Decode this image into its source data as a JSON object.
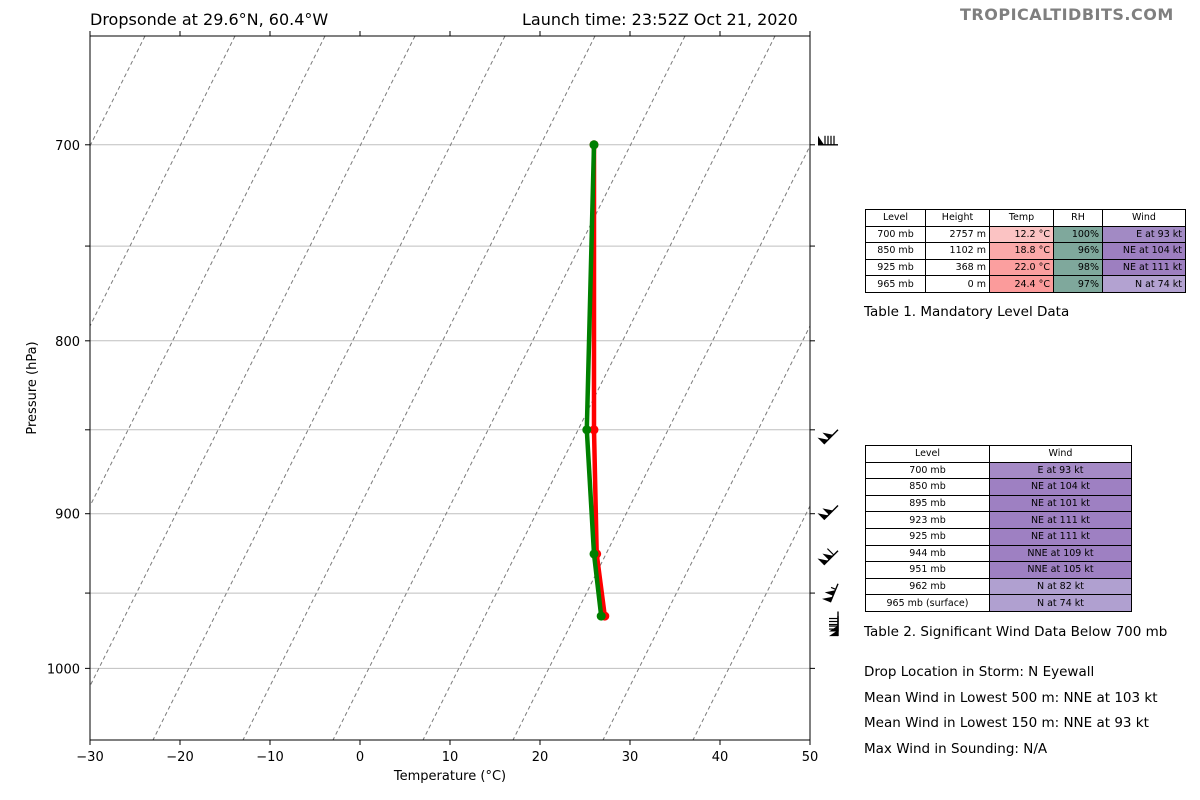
{
  "header": {
    "title_left": "Dropsonde at 29.6°N, 60.4°W",
    "title_right": "Launch time: 23:52Z Oct 21, 2020",
    "watermark": "TROPICALTIDBITS.COM"
  },
  "chart_data": {
    "type": "line",
    "xlabel": "Temperature (°C)",
    "ylabel": "Pressure (hPa)",
    "xlim": [
      -30,
      50
    ],
    "ylim": [
      1050,
      650
    ],
    "yscale": "log",
    "x_ticks": [
      "−30",
      "−20",
      "−10",
      "0",
      "10",
      "20",
      "30",
      "40",
      "50"
    ],
    "y_ticks": [
      "700",
      "800",
      "900",
      "1000"
    ],
    "grid_pressures": [
      700,
      750,
      800,
      850,
      900,
      950,
      1000
    ],
    "skew": "dashed diagonal isotherms",
    "series": [
      {
        "color": "#ff0000",
        "points": [
          [
            26.0,
            700
          ],
          [
            26.0,
            850
          ],
          [
            26.3,
            925
          ],
          [
            27.2,
            965
          ]
        ]
      },
      {
        "color": "#008000",
        "points": [
          [
            26.0,
            700
          ],
          [
            25.2,
            850
          ],
          [
            26.0,
            925
          ],
          [
            26.8,
            965
          ]
        ]
      }
    ],
    "wind_barbs": [
      {
        "p": 700,
        "dir": "E",
        "kt": 93
      },
      {
        "p": 850,
        "dir": "NE",
        "kt": 104
      },
      {
        "p": 895,
        "dir": "NE",
        "kt": 101
      },
      {
        "p": 923,
        "dir": "NE",
        "kt": 111
      },
      {
        "p": 944,
        "dir": "NNE",
        "kt": 109
      },
      {
        "p": 962,
        "dir": "N",
        "kt": 82
      },
      {
        "p": 965,
        "dir": "N",
        "kt": 74
      }
    ]
  },
  "table1": {
    "headers": [
      "Level",
      "Height",
      "Temp",
      "RH",
      "Wind"
    ],
    "rows": [
      {
        "level": "700 mb",
        "height": "2757 m",
        "temp": "12.2 °C",
        "rh": "100%",
        "wind": "E at 93 kt",
        "temp_color": "#fbc3c3",
        "wind_color": "#a28ac4"
      },
      {
        "level": "850 mb",
        "height": "1102 m",
        "temp": "18.8 °C",
        "rh": "96%",
        "wind": "NE at 104 kt",
        "temp_color": "#fba9a9",
        "wind_color": "#9d7fc0"
      },
      {
        "level": "925 mb",
        "height": "368 m",
        "temp": "22.0 °C",
        "rh": "98%",
        "wind": "NE at 111 kt",
        "temp_color": "#fb9f9f",
        "wind_color": "#9d7fc0"
      },
      {
        "level": "965 mb",
        "height": "0 m",
        "temp": "24.4 °C",
        "rh": "97%",
        "wind": "N at 74 kt",
        "temp_color": "#fb9b9b",
        "wind_color": "#b3a2d1"
      }
    ],
    "rh_color": "#7fa89c",
    "caption": "Table 1. Mandatory Level Data"
  },
  "table2": {
    "headers": [
      "Level",
      "Wind"
    ],
    "rows": [
      {
        "level": "700 mb",
        "wind": "E at 93 kt",
        "color": "#a58ac6"
      },
      {
        "level": "850 mb",
        "wind": "NE at 104 kt",
        "color": "#9e80c2"
      },
      {
        "level": "895 mb",
        "wind": "NE at 101 kt",
        "color": "#9e80c2"
      },
      {
        "level": "923 mb",
        "wind": "NE at 111 kt",
        "color": "#9e80c2"
      },
      {
        "level": "925 mb",
        "wind": "NE at 111 kt",
        "color": "#9e80c2"
      },
      {
        "level": "944 mb",
        "wind": "NNE at 109 kt",
        "color": "#9e80c2"
      },
      {
        "level": "951 mb",
        "wind": "NNE at 105 kt",
        "color": "#9e80c2"
      },
      {
        "level": "962 mb",
        "wind": "N at 82 kt",
        "color": "#b0a0d0"
      },
      {
        "level": "965 mb (surface)",
        "wind": "N at 74 kt",
        "color": "#b0a0d0"
      }
    ],
    "caption": "Table 2. Significant Wind Data Below 700 mb"
  },
  "info": {
    "drop_location": "Drop Location in Storm: N Eyewall",
    "mean_500": "Mean Wind in Lowest 500 m:  NNE at 103 kt",
    "mean_150": "Mean Wind in Lowest 150 m:  NNE at 93 kt",
    "max_wind": "Max Wind in Sounding: N/A"
  }
}
